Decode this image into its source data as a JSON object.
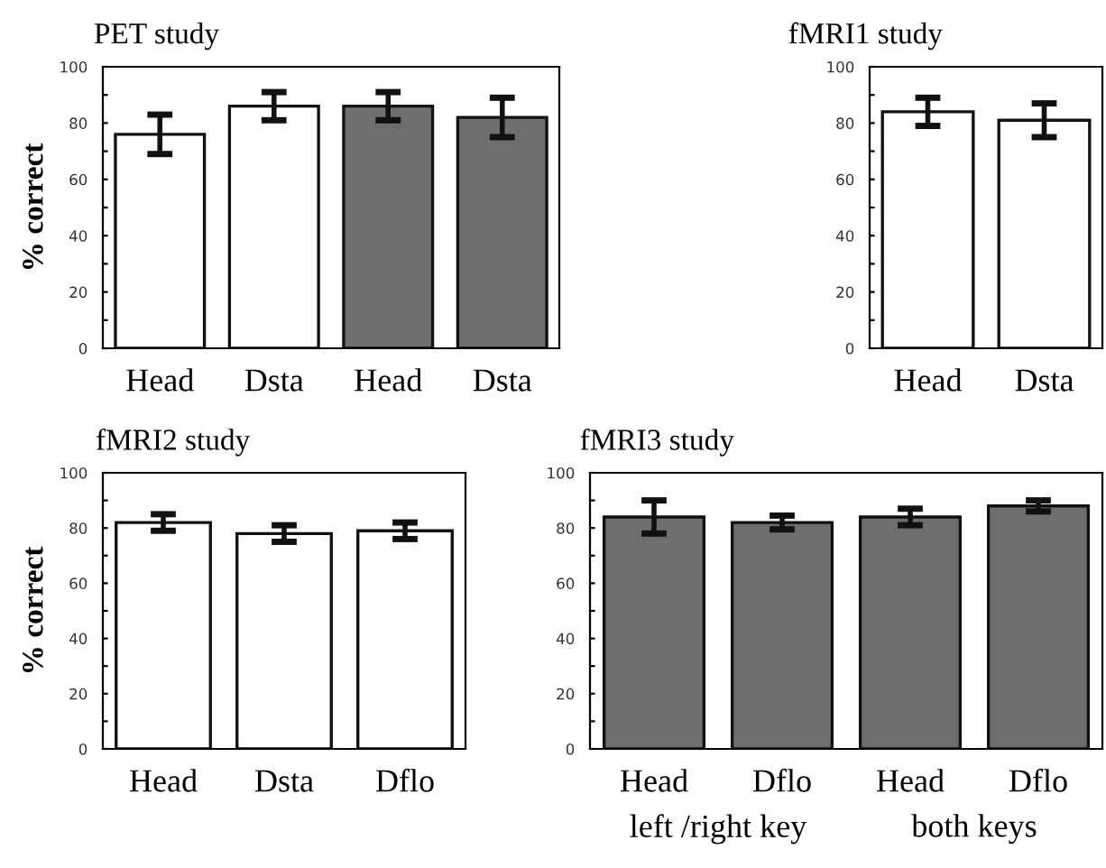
{
  "chart_data": [
    {
      "type": "bar",
      "title": "PET study",
      "ylabel": "% correct",
      "categories": [
        "Head",
        "Dsta",
        "Head",
        "Dsta"
      ],
      "values": [
        76,
        86,
        86,
        82
      ],
      "errors": [
        7,
        5,
        5,
        7
      ],
      "colors": [
        "#ffffff",
        "#ffffff",
        "#6e6e6e",
        "#6e6e6e"
      ],
      "ylim": [
        0,
        100
      ],
      "yticks": [
        0,
        {
          "value": 10,
          "label": null
        },
        20,
        {
          "value": 30,
          "label": null
        },
        40,
        {
          "value": 50,
          "label": null
        },
        60,
        {
          "value": 70,
          "label": null
        },
        80,
        {
          "value": 90,
          "label": null
        },
        100
      ],
      "grid": false,
      "legend": false
    },
    {
      "type": "bar",
      "title": "fMRI1 study",
      "categories": [
        "Head",
        "Dsta"
      ],
      "values": [
        84,
        81
      ],
      "errors": [
        5,
        6
      ],
      "colors": [
        "#ffffff",
        "#ffffff"
      ],
      "ylim": [
        0,
        100
      ],
      "yticks": [
        0,
        {
          "value": 10,
          "label": null
        },
        20,
        {
          "value": 30,
          "label": null
        },
        40,
        {
          "value": 50,
          "label": null
        },
        60,
        {
          "value": 70,
          "label": null
        },
        80,
        {
          "value": 90,
          "label": null
        },
        100
      ],
      "grid": false,
      "legend": false
    },
    {
      "type": "bar",
      "title": "fMRI2 study",
      "ylabel": "% correct",
      "categories": [
        "Head",
        "Dsta",
        "Dflo"
      ],
      "values": [
        82,
        78,
        79
      ],
      "errors": [
        3,
        3,
        3
      ],
      "colors": [
        "#ffffff",
        "#ffffff",
        "#ffffff"
      ],
      "ylim": [
        0,
        100
      ],
      "yticks": [
        0,
        {
          "value": 10,
          "label": null
        },
        20,
        {
          "value": 30,
          "label": null
        },
        40,
        {
          "value": 50,
          "label": null
        },
        60,
        {
          "value": 70,
          "label": null
        },
        80,
        {
          "value": 90,
          "label": null
        },
        100
      ],
      "grid": false,
      "legend": false
    },
    {
      "type": "bar",
      "title": "fMRI3 study",
      "categories": [
        "Head",
        "Dflo",
        "Head",
        "Dflo"
      ],
      "values": [
        84,
        82,
        84,
        88
      ],
      "errors": [
        6,
        2.5,
        3,
        2
      ],
      "colors": [
        "#6e6e6e",
        "#6e6e6e",
        "#6e6e6e",
        "#6e6e6e"
      ],
      "ylim": [
        0,
        100
      ],
      "yticks": [
        0,
        {
          "value": 10,
          "label": null
        },
        20,
        {
          "value": 30,
          "label": null
        },
        40,
        {
          "value": 50,
          "label": null
        },
        60,
        {
          "value": 70,
          "label": null
        },
        80,
        {
          "value": 90,
          "label": null
        },
        100
      ],
      "grid": false,
      "legend": false,
      "annotations": [
        "left /right key",
        "both keys"
      ]
    }
  ]
}
